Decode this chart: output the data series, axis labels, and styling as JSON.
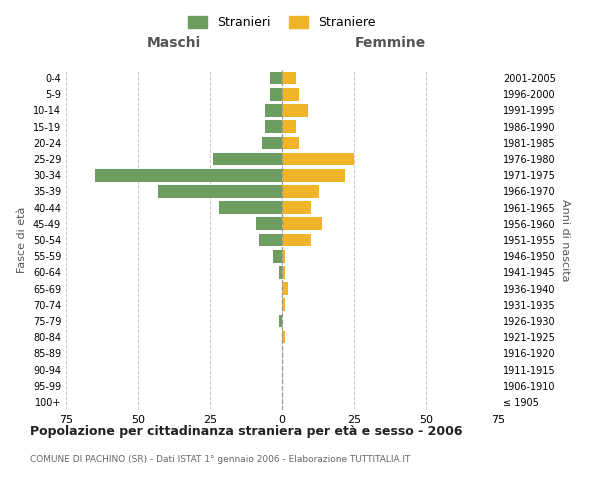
{
  "age_groups": [
    "100+",
    "95-99",
    "90-94",
    "85-89",
    "80-84",
    "75-79",
    "70-74",
    "65-69",
    "60-64",
    "55-59",
    "50-54",
    "45-49",
    "40-44",
    "35-39",
    "30-34",
    "25-29",
    "20-24",
    "15-19",
    "10-14",
    "5-9",
    "0-4"
  ],
  "birth_years": [
    "≤ 1905",
    "1906-1910",
    "1911-1915",
    "1916-1920",
    "1921-1925",
    "1926-1930",
    "1931-1935",
    "1936-1940",
    "1941-1945",
    "1946-1950",
    "1951-1955",
    "1956-1960",
    "1961-1965",
    "1966-1970",
    "1971-1975",
    "1976-1980",
    "1981-1985",
    "1986-1990",
    "1991-1995",
    "1996-2000",
    "2001-2005"
  ],
  "males": [
    0,
    0,
    0,
    0,
    0,
    1,
    0,
    0,
    1,
    3,
    8,
    9,
    22,
    43,
    65,
    24,
    7,
    6,
    6,
    4,
    4
  ],
  "females": [
    0,
    0,
    0,
    0,
    1,
    0,
    1,
    2,
    1,
    1,
    10,
    14,
    10,
    13,
    22,
    25,
    6,
    5,
    9,
    6,
    5
  ],
  "male_color": "#6d9e5f",
  "female_color": "#f0b429",
  "male_label": "Stranieri",
  "female_label": "Straniere",
  "title": "Popolazione per cittadinanza straniera per età e sesso - 2006",
  "subtitle": "COMUNE DI PACHINO (SR) - Dati ISTAT 1° gennaio 2006 - Elaborazione TUTTITALIA.IT",
  "xlabel_left": "Maschi",
  "xlabel_right": "Femmine",
  "ylabel_left": "Fasce di età",
  "ylabel_right": "Anni di nascita",
  "xlim": 75,
  "background_color": "#ffffff",
  "grid_color": "#cccccc"
}
